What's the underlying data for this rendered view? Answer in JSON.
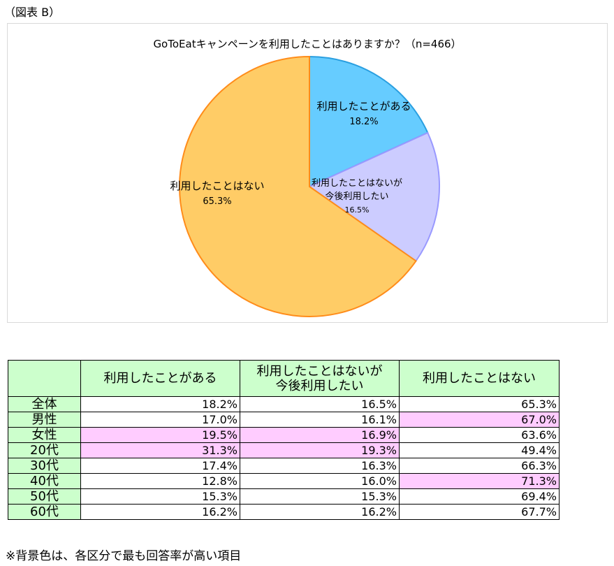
{
  "figure_label": "（図表 B）",
  "chart_data": {
    "type": "pie",
    "title": "GoToEatキャンペーンを利用したことはありますか？（n=466）",
    "slices": [
      {
        "label": "利用したことがある",
        "value": 18.2,
        "value_label": "18.2%",
        "color": "#66ccff",
        "edge": "#2a9fe0"
      },
      {
        "label": "利用したことはないが今後利用したい",
        "label_lines": [
          "利用したことはないが",
          "今後利用したい"
        ],
        "value": 16.5,
        "value_label": "16.5%",
        "color": "#ccccff",
        "edge": "#9999ff"
      },
      {
        "label": "利用したことはない",
        "value": 65.3,
        "value_label": "65.3%",
        "color": "#ffcc66",
        "edge": "#ff8c1a"
      }
    ]
  },
  "table": {
    "headers": [
      "利用したことがある",
      "利用したことはないが\n今後利用したい",
      "利用したことはない"
    ],
    "highlight_color": "#ffccff",
    "header_color": "#ccffcc",
    "rows": [
      {
        "label": "全体",
        "values": [
          "18.2%",
          "16.5%",
          "65.3%"
        ],
        "highlight": [
          false,
          false,
          false
        ]
      },
      {
        "label": "男性",
        "values": [
          "17.0%",
          "16.1%",
          "67.0%"
        ],
        "highlight": [
          false,
          false,
          true
        ]
      },
      {
        "label": "女性",
        "values": [
          "19.5%",
          "16.9%",
          "63.6%"
        ],
        "highlight": [
          true,
          true,
          false
        ]
      },
      {
        "label": "20代",
        "values": [
          "31.3%",
          "19.3%",
          "49.4%"
        ],
        "highlight": [
          true,
          true,
          false
        ]
      },
      {
        "label": "30代",
        "values": [
          "17.4%",
          "16.3%",
          "66.3%"
        ],
        "highlight": [
          false,
          false,
          false
        ]
      },
      {
        "label": "40代",
        "values": [
          "12.8%",
          "16.0%",
          "71.3%"
        ],
        "highlight": [
          false,
          false,
          true
        ]
      },
      {
        "label": "50代",
        "values": [
          "15.3%",
          "15.3%",
          "69.4%"
        ],
        "highlight": [
          false,
          false,
          false
        ]
      },
      {
        "label": "60代",
        "values": [
          "16.2%",
          "16.2%",
          "67.7%"
        ],
        "highlight": [
          false,
          false,
          false
        ]
      }
    ]
  },
  "footnote": "※背景色は、各区分で最も回答率が高い項目"
}
